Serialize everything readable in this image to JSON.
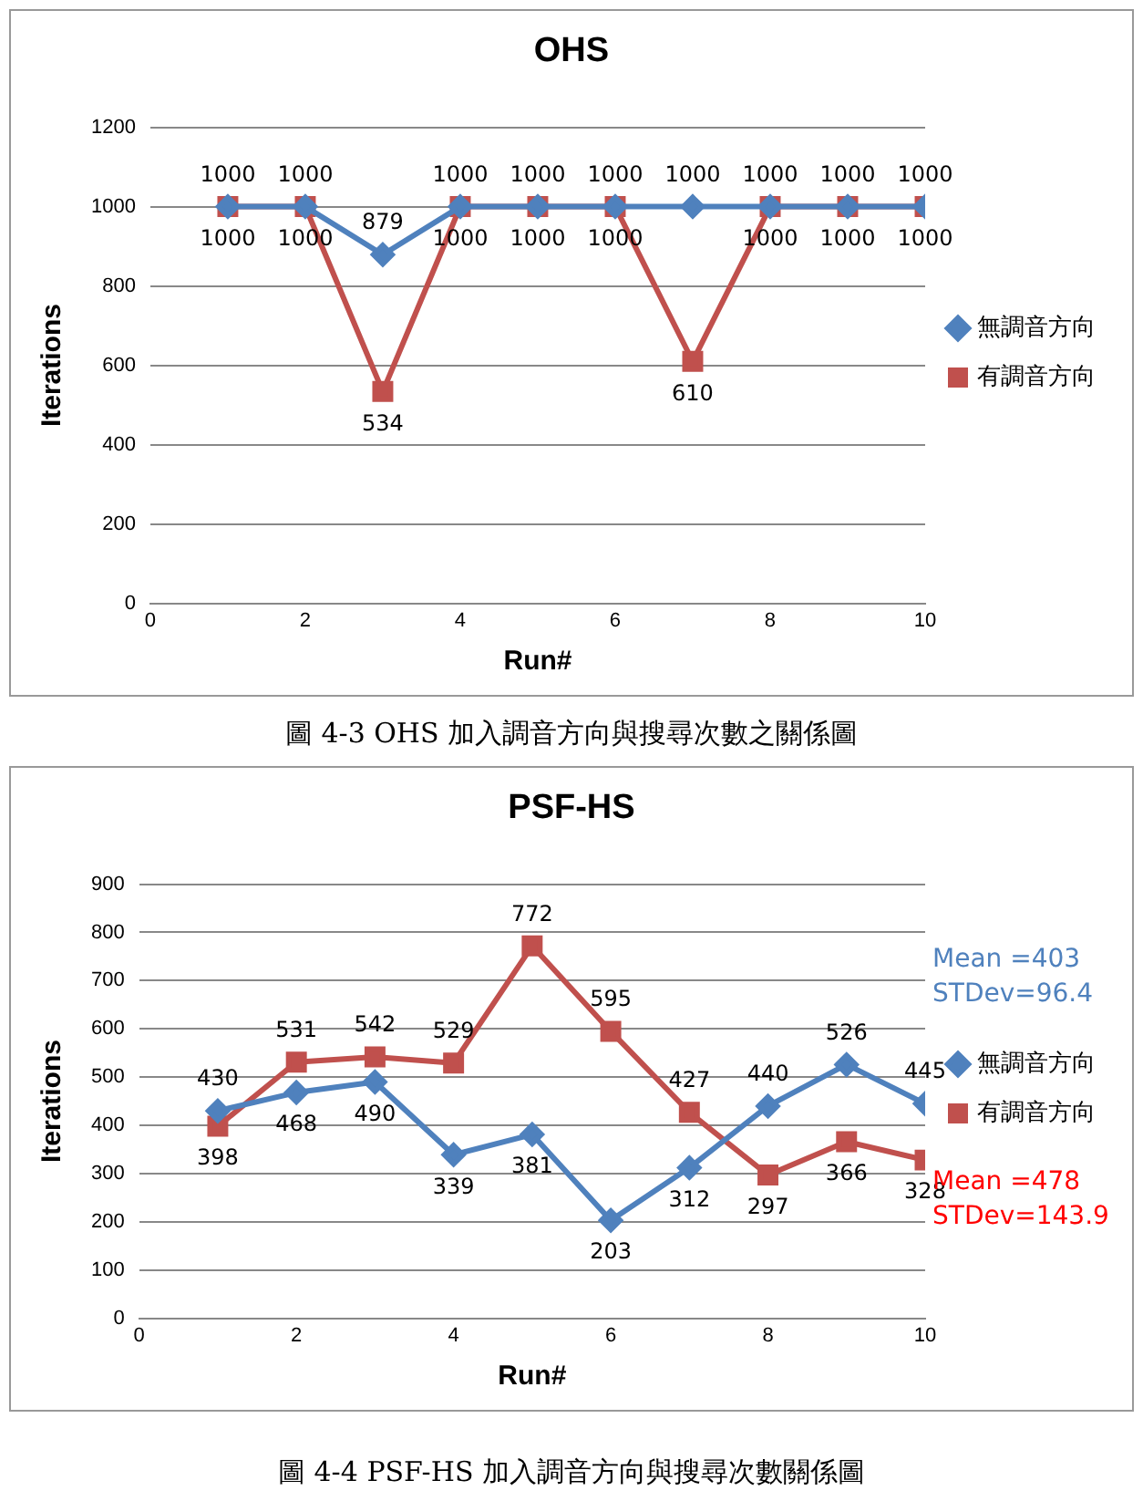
{
  "chart_data": [
    {
      "type": "line",
      "title": "OHS",
      "xlabel": "Run#",
      "ylabel": "Iterations",
      "x": [
        1,
        2,
        3,
        4,
        5,
        6,
        7,
        8,
        9,
        10
      ],
      "xlim": [
        0,
        10
      ],
      "xticks": [
        0,
        2,
        4,
        6,
        8,
        10
      ],
      "ylim": [
        0,
        1200
      ],
      "yticks": [
        0,
        200,
        400,
        600,
        800,
        1000,
        1200
      ],
      "grid": "y",
      "legend": "right",
      "data_labels": true,
      "series": [
        {
          "name": "無調音方向",
          "color": "#4f81bd",
          "marker": "diamond",
          "values": [
            1000,
            1000,
            879,
            1000,
            1000,
            1000,
            1000,
            1000,
            1000,
            1000
          ]
        },
        {
          "name": "有調音方向",
          "color": "#c0504d",
          "marker": "square",
          "values": [
            1000,
            1000,
            534,
            1000,
            1000,
            1000,
            610,
            1000,
            1000,
            1000
          ]
        }
      ],
      "annotations": [
        "圖 4-3 OHS 加入調音方向與搜尋次數之關係圖"
      ]
    },
    {
      "type": "line",
      "title": "PSF-HS",
      "xlabel": "Run#",
      "ylabel": "Iterations",
      "x": [
        1,
        2,
        3,
        4,
        5,
        6,
        7,
        8,
        9,
        10
      ],
      "xlim": [
        0,
        10
      ],
      "xticks": [
        0,
        2,
        4,
        6,
        8,
        10
      ],
      "ylim": [
        0,
        900
      ],
      "yticks": [
        0,
        100,
        200,
        300,
        400,
        500,
        600,
        700,
        800,
        900
      ],
      "grid": "y",
      "legend": "right",
      "data_labels": true,
      "series": [
        {
          "name": "無調音方向",
          "color": "#4f81bd",
          "marker": "diamond",
          "values": [
            430,
            468,
            490,
            339,
            381,
            203,
            312,
            440,
            526,
            445
          ]
        },
        {
          "name": "有調音方向",
          "color": "#c0504d",
          "marker": "square",
          "values": [
            398,
            531,
            542,
            529,
            772,
            595,
            427,
            297,
            366,
            328
          ]
        }
      ],
      "annotations": [
        "Mean =403\nSTDev=96.4",
        "Mean =478\nSTDev=143.9",
        "圖 4-4 PSF-HS 加入調音方向與搜尋次數關係圖"
      ]
    }
  ]
}
